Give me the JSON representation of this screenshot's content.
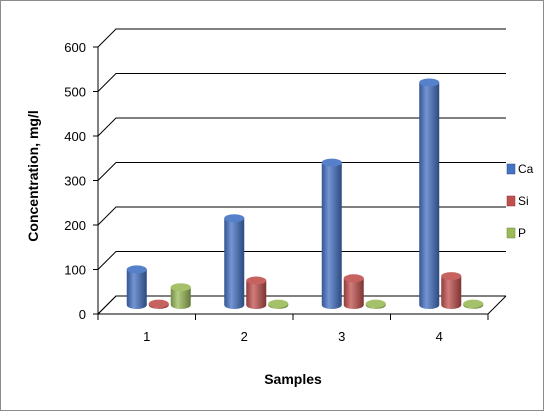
{
  "chart_data": {
    "type": "bar",
    "categories": [
      "1",
      "2",
      "3",
      "4"
    ],
    "series": [
      {
        "name": "Ca",
        "values": [
          80,
          195,
          320,
          500
        ],
        "color": "#4472C4"
      },
      {
        "name": "Si",
        "values": [
          3,
          55,
          60,
          65
        ],
        "color": "#C0504D"
      },
      {
        "name": "P",
        "values": [
          40,
          3,
          3,
          3
        ],
        "color": "#9BBB59"
      }
    ],
    "xlabel": "Samples",
    "ylabel": "Concentration, mg/l",
    "ylim": [
      0,
      600
    ],
    "yticks": [
      0,
      100,
      200,
      300,
      400,
      500,
      600
    ],
    "grid": true,
    "legend_position": "right",
    "style": "3d-cylinder"
  }
}
